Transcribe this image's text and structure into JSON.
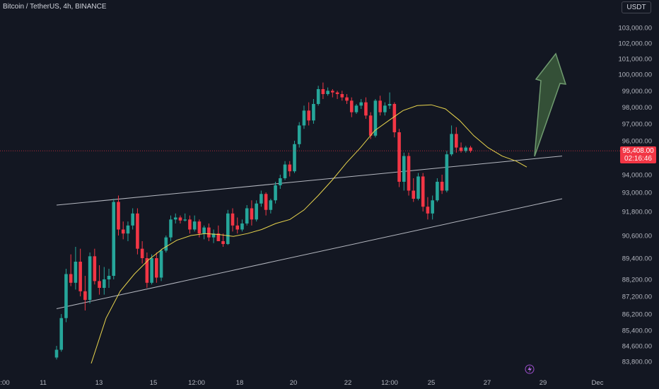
{
  "header": {
    "title": "Bitcoin / TetherUS, 4h, BINANCE",
    "currency": "USDT"
  },
  "colors": {
    "background": "#131722",
    "up": "#26a69a",
    "down": "#f23645",
    "ma": "#e8d44d",
    "trendline": "#d1d4dc",
    "arrow_fill": "#3b5a3b",
    "arrow_stroke": "#6f9a6f",
    "axis_text": "#b2b5be"
  },
  "price_label": {
    "price": "95,408.00",
    "countdown": "02:16:46"
  },
  "chart_data": {
    "type": "candlestick",
    "symbol": "Bitcoin / TetherUS",
    "timeframe": "4h",
    "exchange": "BINANCE",
    "ylim": [
      83400,
      103800
    ],
    "y_ticks": [
      "103,000.00",
      "102,000.00",
      "101,000.00",
      "100,000.00",
      "99,000.00",
      "98,000.00",
      "97,000.00",
      "96,000.00",
      "94,000.00",
      "93,000.00",
      "91,800.00",
      "90,600.00",
      "89,400.00",
      "88,200.00",
      "87,200.00",
      "86,200.00",
      "85,400.00",
      "84,600.00",
      "83,800.00"
    ],
    "x_ticks": [
      ":00",
      "11",
      "13",
      "15",
      "12:00",
      "18",
      "20",
      "22",
      "12:00",
      "25",
      "27",
      "29",
      "Dec"
    ],
    "last_price": 95408,
    "candles": [
      [
        84000,
        84600,
        83900,
        84400
      ],
      [
        84400,
        86200,
        84300,
        86000
      ],
      [
        86000,
        88800,
        85800,
        88500
      ],
      [
        88500,
        89600,
        87800,
        88000
      ],
      [
        88000,
        90000,
        87600,
        89200
      ],
      [
        89200,
        89900,
        87200,
        87500
      ],
      [
        87500,
        88400,
        86400,
        87000
      ],
      [
        87000,
        89700,
        86800,
        89500
      ],
      [
        89500,
        89900,
        87900,
        88100
      ],
      [
        88100,
        89000,
        87300,
        87700
      ],
      [
        87700,
        88900,
        87300,
        88200
      ],
      [
        88200,
        88800,
        87700,
        88400
      ],
      [
        88400,
        92600,
        88200,
        92400
      ],
      [
        92400,
        92800,
        90600,
        90900
      ],
      [
        90900,
        91300,
        90400,
        90700
      ],
      [
        90700,
        91300,
        90300,
        91100
      ],
      [
        91100,
        92000,
        90900,
        91700
      ],
      [
        91700,
        92000,
        89600,
        89900
      ],
      [
        89900,
        90300,
        89100,
        89400
      ],
      [
        89400,
        89700,
        87700,
        88000
      ],
      [
        88000,
        89600,
        87900,
        89400
      ],
      [
        89400,
        89700,
        88000,
        88300
      ],
      [
        88300,
        89900,
        88100,
        89800
      ],
      [
        89800,
        90600,
        89700,
        90500
      ],
      [
        90500,
        91600,
        90300,
        91400
      ],
      [
        91400,
        91700,
        91200,
        91500
      ],
      [
        91500,
        91600,
        91200,
        91350
      ],
      [
        91350,
        91700,
        91300,
        91400
      ],
      [
        91400,
        91600,
        90700,
        90900
      ],
      [
        90900,
        91600,
        90800,
        91300
      ],
      [
        91300,
        91400,
        90500,
        90700
      ],
      [
        90700,
        91100,
        90400,
        91000
      ],
      [
        91000,
        91200,
        90300,
        90500
      ],
      [
        90500,
        90900,
        90200,
        90700
      ],
      [
        90700,
        91100,
        90400,
        90300
      ],
      [
        90300,
        90700,
        90000,
        90150
      ],
      [
        90150,
        91900,
        90100,
        91700
      ],
      [
        91700,
        92000,
        90800,
        91100
      ],
      [
        91100,
        91500,
        90700,
        90900
      ],
      [
        90900,
        91400,
        90800,
        91200
      ],
      [
        91200,
        92200,
        91100,
        92000
      ],
      [
        92000,
        92500,
        91100,
        91400
      ],
      [
        91400,
        92500,
        91300,
        92300
      ],
      [
        92300,
        93100,
        92100,
        92900
      ],
      [
        92900,
        93000,
        91600,
        91900
      ],
      [
        91900,
        92600,
        91700,
        92500
      ],
      [
        92500,
        93600,
        92300,
        93400
      ],
      [
        93400,
        94000,
        93200,
        93800
      ],
      [
        93800,
        94800,
        93700,
        94600
      ],
      [
        94600,
        94800,
        93900,
        94200
      ],
      [
        94200,
        96000,
        94100,
        95800
      ],
      [
        95800,
        97100,
        95600,
        96900
      ],
      [
        96900,
        98100,
        96700,
        97800
      ],
      [
        97800,
        98300,
        96900,
        97200
      ],
      [
        97200,
        98500,
        97000,
        98200
      ],
      [
        98200,
        99300,
        98100,
        99100
      ],
      [
        99100,
        99500,
        98500,
        98800
      ],
      [
        98800,
        99200,
        98700,
        99000
      ],
      [
        99000,
        99100,
        98600,
        98900
      ],
      [
        98900,
        99000,
        98500,
        98800
      ],
      [
        98800,
        99000,
        98400,
        98600
      ],
      [
        98600,
        98800,
        98200,
        98400
      ],
      [
        98400,
        98600,
        97400,
        97700
      ],
      [
        97700,
        98200,
        97600,
        98100
      ],
      [
        98100,
        98500,
        97900,
        98300
      ],
      [
        98300,
        98600,
        97300,
        97500
      ],
      [
        97500,
        97700,
        96100,
        96300
      ],
      [
        96300,
        98500,
        96200,
        98400
      ],
      [
        98400,
        98700,
        97500,
        97700
      ],
      [
        97700,
        98300,
        97500,
        98100
      ],
      [
        98100,
        98900,
        97900,
        98200
      ],
      [
        98200,
        98300,
        96200,
        96500
      ],
      [
        96500,
        96700,
        93300,
        93600
      ],
      [
        93600,
        95300,
        93100,
        95100
      ],
      [
        95100,
        95300,
        92800,
        93100
      ],
      [
        93100,
        93800,
        92400,
        92600
      ],
      [
        92600,
        94100,
        92500,
        93900
      ],
      [
        93900,
        94100,
        91800,
        92100
      ],
      [
        92100,
        92700,
        91400,
        91700
      ],
      [
        91700,
        92800,
        91400,
        92500
      ],
      [
        92500,
        93800,
        92400,
        93600
      ],
      [
        93600,
        94000,
        92900,
        93100
      ],
      [
        93100,
        95400,
        93000,
        95200
      ],
      [
        95200,
        96900,
        95100,
        96400
      ],
      [
        96400,
        96800,
        95300,
        95600
      ],
      [
        95600,
        95900,
        95300,
        95400
      ],
      [
        95400,
        95700,
        95300,
        95600
      ],
      [
        95600,
        95700,
        95300,
        95408
      ]
    ],
    "moving_average": [
      [
        129,
        83700
      ],
      [
        150,
        86000
      ],
      [
        170,
        87500
      ],
      [
        190,
        88500
      ],
      [
        210,
        89300
      ],
      [
        230,
        89900
      ],
      [
        250,
        90350
      ],
      [
        270,
        90600
      ],
      [
        290,
        90700
      ],
      [
        310,
        90650
      ],
      [
        330,
        90550
      ],
      [
        350,
        90700
      ],
      [
        370,
        90900
      ],
      [
        390,
        91200
      ],
      [
        410,
        91400
      ],
      [
        430,
        91900
      ],
      [
        450,
        92800
      ],
      [
        470,
        93700
      ],
      [
        490,
        94700
      ],
      [
        510,
        95600
      ],
      [
        530,
        96600
      ],
      [
        550,
        97200
      ],
      [
        570,
        97800
      ],
      [
        590,
        98100
      ],
      [
        610,
        98150
      ],
      [
        630,
        97900
      ],
      [
        650,
        97200
      ],
      [
        670,
        96300
      ],
      [
        690,
        95600
      ],
      [
        710,
        95100
      ],
      [
        730,
        94800
      ],
      [
        745,
        94450
      ]
    ],
    "trendlines": [
      {
        "from": [
          80,
          92200
        ],
        "to": [
          795,
          95100
        ]
      },
      {
        "from": [
          80,
          86500
        ],
        "to": [
          795,
          92600
        ]
      }
    ],
    "annotations": [
      "projected breakout arrow pointing up",
      "lightning bolt marker near 27 Nov"
    ]
  }
}
